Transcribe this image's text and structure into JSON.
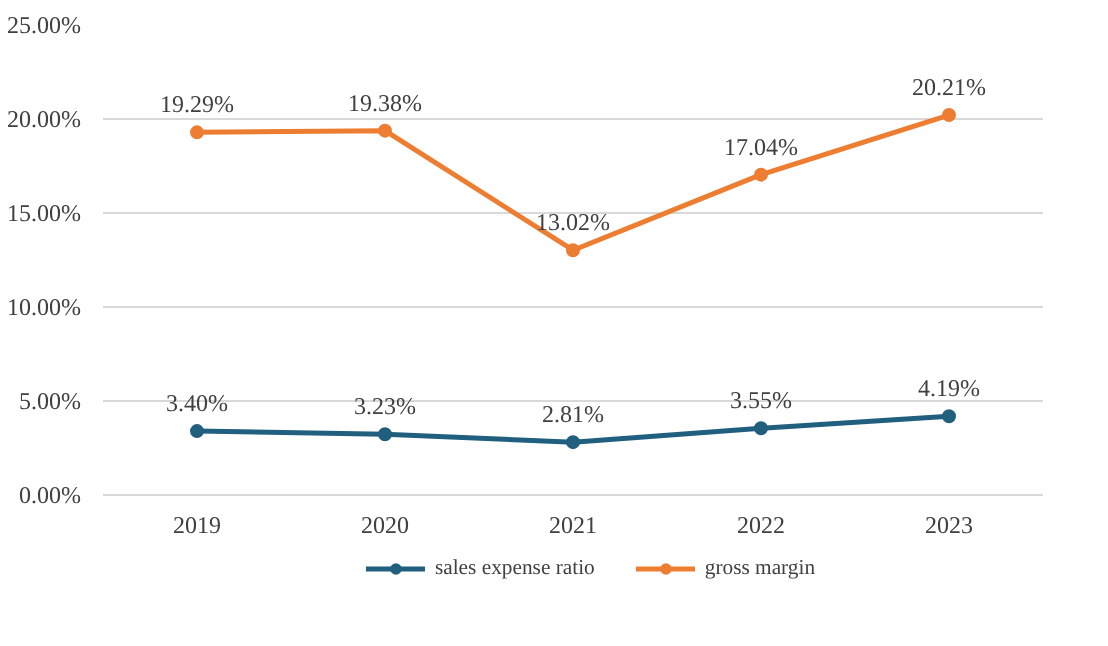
{
  "chart_data": {
    "type": "line",
    "categories": [
      "2019",
      "2020",
      "2021",
      "2022",
      "2023"
    ],
    "series": [
      {
        "name": "sales expense ratio",
        "color": "#215f7e",
        "values": [
          3.4,
          3.23,
          2.81,
          3.55,
          4.19
        ],
        "value_labels": [
          "3.40%",
          "3.23%",
          "2.81%",
          "3.55%",
          "4.19%"
        ]
      },
      {
        "name": "gross margin",
        "color": "#ed7d31",
        "values": [
          19.29,
          19.38,
          13.02,
          17.04,
          20.21
        ],
        "value_labels": [
          "19.29%",
          "19.38%",
          "13.02%",
          "17.04%",
          "20.21%"
        ]
      }
    ],
    "ylim": [
      0,
      25
    ],
    "yticks": [
      {
        "value": 0,
        "label": "0.00%"
      },
      {
        "value": 5,
        "label": "5.00%"
      },
      {
        "value": 10,
        "label": "10.00%"
      },
      {
        "value": 15,
        "label": "15.00%"
      },
      {
        "value": 20,
        "label": "20.00%"
      },
      {
        "value": 25,
        "label": "25.00%"
      }
    ],
    "grid": "y",
    "legend": "bottom",
    "marker": "circle",
    "line_style": "solid"
  }
}
